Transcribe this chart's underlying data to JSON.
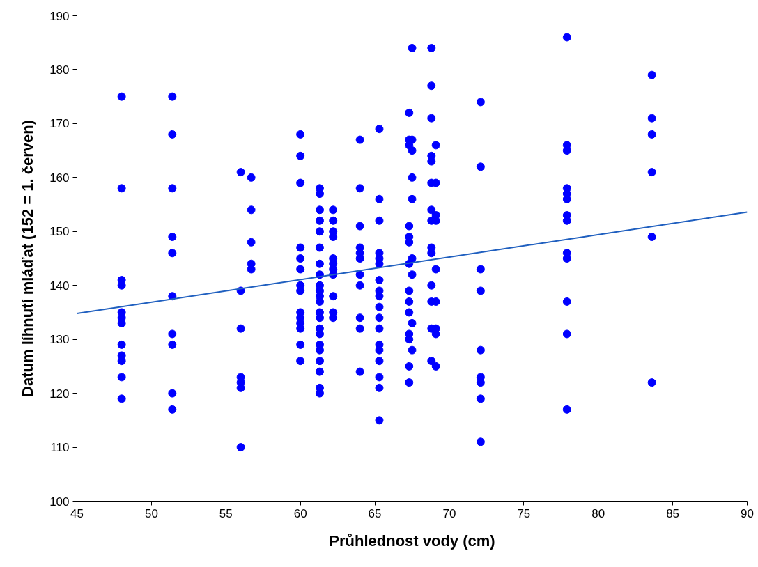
{
  "chart_data": {
    "type": "scatter",
    "xlabel": "Průhlednost vody (cm)",
    "ylabel": "Datum líhnutí mláďat (152 = 1. červen)",
    "xlim": [
      45,
      90
    ],
    "ylim": [
      100,
      190
    ],
    "xticks": [
      45,
      50,
      55,
      60,
      65,
      70,
      75,
      80,
      85,
      90
    ],
    "yticks": [
      100,
      110,
      120,
      130,
      140,
      150,
      160,
      170,
      180,
      190
    ],
    "grid": false,
    "series": [
      {
        "color": "#0000ff",
        "marker": "circle",
        "x": [
          48,
          48,
          48,
          48,
          48,
          48,
          48,
          48,
          48,
          48,
          48,
          48,
          51.4,
          51.4,
          51.4,
          51.4,
          51.4,
          51.4,
          51.4,
          51.4,
          51.4,
          51.4,
          56,
          56,
          56,
          56,
          56,
          56,
          56,
          56.7,
          56.7,
          56.7,
          56.7,
          56.7,
          60,
          60,
          60,
          60,
          60,
          60,
          60,
          60,
          60,
          60,
          60,
          60,
          60,
          60,
          61.3,
          61.3,
          61.3,
          61.3,
          61.3,
          61.3,
          61.3,
          61.3,
          61.3,
          61.3,
          61.3,
          61.3,
          61.3,
          61.3,
          61.3,
          61.3,
          61.3,
          61.3,
          61.3,
          61.3,
          61.3,
          61.3,
          62.2,
          62.2,
          62.2,
          62.2,
          62.2,
          62.2,
          62.2,
          62.2,
          62.2,
          62.2,
          62.2,
          64,
          64,
          64,
          64,
          64,
          64,
          64,
          64,
          64,
          64,
          64,
          65.3,
          65.3,
          65.3,
          65.3,
          65.3,
          65.3,
          65.3,
          65.3,
          65.3,
          65.3,
          65.3,
          65.3,
          65.3,
          65.3,
          65.3,
          65.3,
          65.3,
          65.3,
          67.3,
          67.3,
          67.3,
          67.3,
          67.3,
          67.3,
          67.3,
          67.3,
          67.3,
          67.3,
          67.3,
          67.3,
          67.3,
          67.3,
          67.5,
          67.5,
          67.5,
          67.5,
          67.5,
          67.5,
          67.5,
          67.5,
          67.5,
          68.8,
          68.8,
          68.8,
          68.8,
          68.8,
          68.8,
          68.8,
          68.8,
          68.8,
          68.8,
          68.8,
          68.8,
          68.8,
          68.8,
          69.1,
          69.1,
          69.1,
          69.1,
          69.1,
          69.1,
          69.1,
          69.1,
          69.1,
          72.1,
          72.1,
          72.1,
          72.1,
          72.1,
          72.1,
          72.1,
          72.1,
          72.1,
          77.9,
          77.9,
          77.9,
          77.9,
          77.9,
          77.9,
          77.9,
          77.9,
          77.9,
          77.9,
          77.9,
          77.9,
          77.9,
          83.6,
          83.6,
          83.6,
          83.6,
          83.6,
          83.6
        ],
        "values": [
          175,
          158,
          141,
          140,
          135,
          134,
          133,
          129,
          127,
          126,
          123,
          119,
          175,
          168,
          158,
          149,
          146,
          138,
          131,
          129,
          120,
          117,
          161,
          139,
          132,
          123,
          122,
          121,
          110,
          160,
          154,
          148,
          144,
          143,
          168,
          164,
          159,
          147,
          145,
          143,
          140,
          139,
          135,
          134,
          133,
          132,
          129,
          126,
          158,
          157,
          154,
          152,
          150,
          147,
          144,
          142,
          140,
          139,
          138,
          137,
          135,
          134,
          132,
          131,
          129,
          128,
          126,
          124,
          121,
          120,
          154,
          152,
          150,
          149,
          145,
          144,
          143,
          142,
          138,
          135,
          134,
          167,
          158,
          151,
          147,
          146,
          145,
          142,
          140,
          134,
          132,
          124,
          169,
          156,
          152,
          146,
          145,
          144,
          141,
          139,
          138,
          136,
          134,
          132,
          129,
          128,
          126,
          123,
          121,
          115,
          172,
          167,
          166,
          151,
          149,
          148,
          144,
          139,
          137,
          135,
          131,
          130,
          125,
          122,
          184,
          167,
          165,
          160,
          156,
          145,
          142,
          133,
          128,
          184,
          177,
          171,
          164,
          163,
          159,
          154,
          152,
          147,
          146,
          140,
          137,
          132,
          126,
          166,
          159,
          153,
          152,
          143,
          137,
          132,
          131,
          125,
          174,
          162,
          143,
          139,
          128,
          123,
          122,
          119,
          111,
          186,
          166,
          165,
          158,
          157,
          156,
          153,
          152,
          146,
          145,
          137,
          131,
          117,
          179,
          171,
          168,
          161,
          149,
          122
        ]
      },
      {
        "type": "line",
        "color": "#1f5fbf",
        "line_style": "solid",
        "x": [
          45,
          90
        ],
        "values": [
          134.8,
          153.6
        ]
      }
    ]
  }
}
